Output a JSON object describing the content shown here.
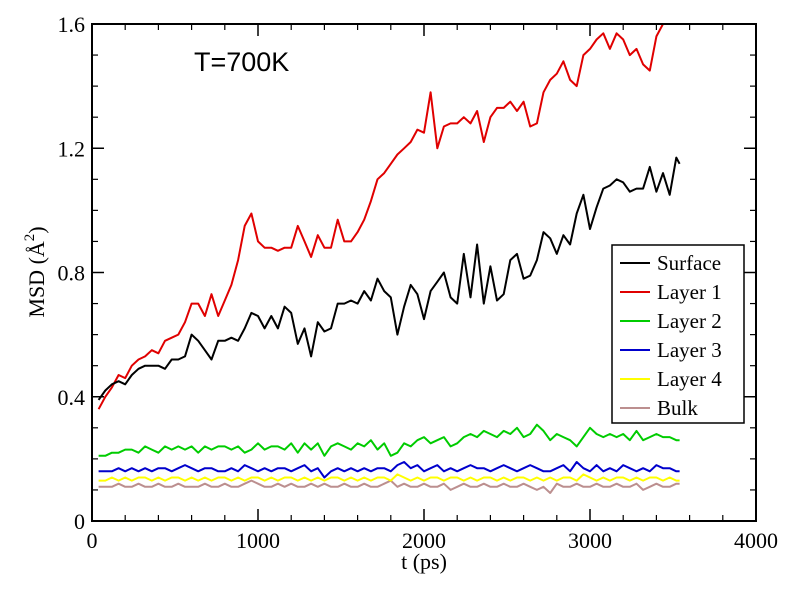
{
  "chart_data": {
    "type": "line",
    "title": "",
    "annotation": "T=700K",
    "xlabel": "t (ps)",
    "ylabel_prefix": "MSD (",
    "ylabel_unit": "Å",
    "ylabel_exponent": "2",
    "ylabel_suffix": ")",
    "xlim": [
      0,
      4000
    ],
    "ylim": [
      0,
      1.6
    ],
    "x_ticks": [
      0,
      1000,
      2000,
      3000,
      4000
    ],
    "x_tick_labels": [
      "0",
      "1000",
      "2000",
      "3000",
      "4000"
    ],
    "y_ticks": [
      0,
      0.4,
      0.8,
      1.2,
      1.6
    ],
    "y_tick_labels": [
      "0",
      "0.4",
      "0.8",
      "1.2",
      "1.6"
    ],
    "x_minor_step": 200,
    "y_minor_step": 0.1,
    "grid": false,
    "legend_position": "right",
    "series": [
      {
        "name": "Surface",
        "color": "#000000",
        "x": [
          40,
          80,
          120,
          160,
          200,
          240,
          280,
          320,
          360,
          400,
          440,
          480,
          520,
          560,
          600,
          640,
          680,
          720,
          760,
          800,
          840,
          880,
          920,
          960,
          1000,
          1040,
          1080,
          1120,
          1160,
          1200,
          1240,
          1280,
          1320,
          1360,
          1400,
          1440,
          1480,
          1520,
          1560,
          1600,
          1640,
          1680,
          1720,
          1760,
          1800,
          1840,
          1880,
          1920,
          1960,
          2000,
          2040,
          2080,
          2120,
          2160,
          2200,
          2240,
          2280,
          2320,
          2360,
          2400,
          2440,
          2480,
          2520,
          2560,
          2600,
          2640,
          2680,
          2720,
          2760,
          2800,
          2840,
          2880,
          2920,
          2960,
          3000,
          3040,
          3080,
          3120,
          3160,
          3200,
          3240,
          3280,
          3320,
          3360,
          3400,
          3440,
          3480,
          3520,
          3540
        ],
        "y": [
          0.39,
          0.42,
          0.44,
          0.45,
          0.44,
          0.47,
          0.49,
          0.5,
          0.5,
          0.5,
          0.49,
          0.52,
          0.52,
          0.53,
          0.6,
          0.58,
          0.55,
          0.52,
          0.58,
          0.58,
          0.59,
          0.58,
          0.62,
          0.67,
          0.66,
          0.62,
          0.66,
          0.62,
          0.69,
          0.67,
          0.57,
          0.62,
          0.53,
          0.64,
          0.61,
          0.62,
          0.7,
          0.7,
          0.71,
          0.7,
          0.74,
          0.71,
          0.78,
          0.74,
          0.72,
          0.6,
          0.69,
          0.76,
          0.73,
          0.65,
          0.74,
          0.77,
          0.8,
          0.72,
          0.7,
          0.86,
          0.72,
          0.89,
          0.7,
          0.82,
          0.71,
          0.73,
          0.84,
          0.86,
          0.78,
          0.79,
          0.84,
          0.93,
          0.91,
          0.86,
          0.92,
          0.89,
          0.99,
          1.05,
          0.94,
          1.01,
          1.07,
          1.08,
          1.1,
          1.09,
          1.06,
          1.07,
          1.07,
          1.14,
          1.06,
          1.12,
          1.05,
          1.17,
          1.15
        ]
      },
      {
        "name": "Layer 1",
        "color": "#e00000",
        "x": [
          40,
          80,
          120,
          160,
          200,
          240,
          280,
          320,
          360,
          400,
          440,
          480,
          520,
          560,
          600,
          640,
          680,
          720,
          760,
          800,
          840,
          880,
          920,
          960,
          1000,
          1040,
          1080,
          1120,
          1160,
          1200,
          1240,
          1280,
          1320,
          1360,
          1400,
          1440,
          1480,
          1520,
          1560,
          1600,
          1640,
          1680,
          1720,
          1760,
          1800,
          1840,
          1880,
          1920,
          1960,
          2000,
          2040,
          2080,
          2120,
          2160,
          2200,
          2240,
          2280,
          2320,
          2360,
          2400,
          2440,
          2480,
          2520,
          2560,
          2600,
          2640,
          2680,
          2720,
          2760,
          2800,
          2840,
          2880,
          2920,
          2960,
          3000,
          3040,
          3080,
          3120,
          3160,
          3200,
          3240,
          3280,
          3320,
          3360,
          3400,
          3440
        ],
        "y": [
          0.36,
          0.4,
          0.43,
          0.47,
          0.46,
          0.5,
          0.52,
          0.53,
          0.55,
          0.54,
          0.58,
          0.59,
          0.6,
          0.64,
          0.7,
          0.7,
          0.66,
          0.73,
          0.66,
          0.71,
          0.76,
          0.84,
          0.95,
          0.99,
          0.9,
          0.88,
          0.88,
          0.87,
          0.88,
          0.88,
          0.95,
          0.9,
          0.85,
          0.92,
          0.88,
          0.88,
          0.97,
          0.9,
          0.9,
          0.93,
          0.97,
          1.03,
          1.1,
          1.12,
          1.15,
          1.18,
          1.2,
          1.22,
          1.26,
          1.25,
          1.38,
          1.2,
          1.27,
          1.28,
          1.28,
          1.3,
          1.28,
          1.32,
          1.22,
          1.3,
          1.33,
          1.33,
          1.35,
          1.32,
          1.35,
          1.27,
          1.28,
          1.38,
          1.42,
          1.44,
          1.48,
          1.42,
          1.4,
          1.5,
          1.52,
          1.55,
          1.57,
          1.52,
          1.57,
          1.55,
          1.5,
          1.52,
          1.47,
          1.45,
          1.56,
          1.6
        ]
      },
      {
        "name": "Layer 2",
        "color": "#00cc00",
        "x": [
          40,
          80,
          120,
          160,
          200,
          240,
          280,
          320,
          360,
          400,
          440,
          480,
          520,
          560,
          600,
          640,
          680,
          720,
          760,
          800,
          840,
          880,
          920,
          960,
          1000,
          1040,
          1080,
          1120,
          1160,
          1200,
          1240,
          1280,
          1320,
          1360,
          1400,
          1440,
          1480,
          1520,
          1560,
          1600,
          1640,
          1680,
          1720,
          1760,
          1800,
          1840,
          1880,
          1920,
          1960,
          2000,
          2040,
          2080,
          2120,
          2160,
          2200,
          2240,
          2280,
          2320,
          2360,
          2400,
          2440,
          2480,
          2520,
          2560,
          2600,
          2640,
          2680,
          2720,
          2760,
          2800,
          2840,
          2880,
          2920,
          2960,
          3000,
          3040,
          3080,
          3120,
          3160,
          3200,
          3240,
          3280,
          3320,
          3360,
          3400,
          3440,
          3480,
          3520,
          3540
        ],
        "y": [
          0.21,
          0.21,
          0.22,
          0.22,
          0.23,
          0.23,
          0.22,
          0.24,
          0.23,
          0.22,
          0.24,
          0.23,
          0.24,
          0.23,
          0.24,
          0.22,
          0.24,
          0.23,
          0.24,
          0.24,
          0.23,
          0.24,
          0.22,
          0.23,
          0.25,
          0.23,
          0.24,
          0.24,
          0.23,
          0.25,
          0.22,
          0.25,
          0.23,
          0.25,
          0.21,
          0.24,
          0.25,
          0.24,
          0.23,
          0.25,
          0.24,
          0.26,
          0.23,
          0.25,
          0.21,
          0.22,
          0.25,
          0.24,
          0.26,
          0.27,
          0.25,
          0.26,
          0.27,
          0.24,
          0.25,
          0.27,
          0.28,
          0.27,
          0.29,
          0.28,
          0.27,
          0.29,
          0.28,
          0.3,
          0.27,
          0.28,
          0.31,
          0.29,
          0.26,
          0.28,
          0.27,
          0.26,
          0.24,
          0.27,
          0.3,
          0.28,
          0.27,
          0.28,
          0.27,
          0.28,
          0.26,
          0.29,
          0.26,
          0.27,
          0.28,
          0.27,
          0.27,
          0.26,
          0.26
        ]
      },
      {
        "name": "Layer 3",
        "color": "#0000cc",
        "x": [
          40,
          80,
          120,
          160,
          200,
          240,
          280,
          320,
          360,
          400,
          440,
          480,
          520,
          560,
          600,
          640,
          680,
          720,
          760,
          800,
          840,
          880,
          920,
          960,
          1000,
          1040,
          1080,
          1120,
          1160,
          1200,
          1240,
          1280,
          1320,
          1360,
          1400,
          1440,
          1480,
          1520,
          1560,
          1600,
          1640,
          1680,
          1720,
          1760,
          1800,
          1840,
          1880,
          1920,
          1960,
          2000,
          2040,
          2080,
          2120,
          2160,
          2200,
          2240,
          2280,
          2320,
          2360,
          2400,
          2440,
          2480,
          2520,
          2560,
          2600,
          2640,
          2680,
          2720,
          2760,
          2800,
          2840,
          2880,
          2920,
          2960,
          3000,
          3040,
          3080,
          3120,
          3160,
          3200,
          3240,
          3280,
          3320,
          3360,
          3400,
          3440,
          3480,
          3520,
          3540
        ],
        "y": [
          0.16,
          0.16,
          0.16,
          0.17,
          0.16,
          0.17,
          0.16,
          0.17,
          0.16,
          0.17,
          0.17,
          0.16,
          0.17,
          0.18,
          0.17,
          0.16,
          0.17,
          0.17,
          0.16,
          0.16,
          0.17,
          0.16,
          0.18,
          0.17,
          0.16,
          0.17,
          0.16,
          0.17,
          0.17,
          0.16,
          0.17,
          0.18,
          0.16,
          0.17,
          0.14,
          0.16,
          0.17,
          0.16,
          0.17,
          0.16,
          0.17,
          0.16,
          0.17,
          0.17,
          0.16,
          0.18,
          0.19,
          0.17,
          0.18,
          0.16,
          0.17,
          0.18,
          0.16,
          0.17,
          0.16,
          0.17,
          0.18,
          0.17,
          0.17,
          0.16,
          0.17,
          0.18,
          0.17,
          0.16,
          0.17,
          0.18,
          0.17,
          0.16,
          0.16,
          0.17,
          0.18,
          0.16,
          0.19,
          0.17,
          0.16,
          0.18,
          0.16,
          0.17,
          0.16,
          0.18,
          0.17,
          0.16,
          0.17,
          0.16,
          0.18,
          0.17,
          0.17,
          0.16,
          0.16
        ]
      },
      {
        "name": "Layer 4",
        "color": "#ffff00",
        "x": [
          40,
          80,
          120,
          160,
          200,
          240,
          280,
          320,
          360,
          400,
          440,
          480,
          520,
          560,
          600,
          640,
          680,
          720,
          760,
          800,
          840,
          880,
          920,
          960,
          1000,
          1040,
          1080,
          1120,
          1160,
          1200,
          1240,
          1280,
          1320,
          1360,
          1400,
          1440,
          1480,
          1520,
          1560,
          1600,
          1640,
          1680,
          1720,
          1760,
          1800,
          1840,
          1880,
          1920,
          1960,
          2000,
          2040,
          2080,
          2120,
          2160,
          2200,
          2240,
          2280,
          2320,
          2360,
          2400,
          2440,
          2480,
          2520,
          2560,
          2600,
          2640,
          2680,
          2720,
          2760,
          2800,
          2840,
          2880,
          2920,
          2960,
          3000,
          3040,
          3080,
          3120,
          3160,
          3200,
          3240,
          3280,
          3320,
          3360,
          3400,
          3440,
          3480,
          3520,
          3540
        ],
        "y": [
          0.13,
          0.13,
          0.14,
          0.13,
          0.14,
          0.13,
          0.14,
          0.14,
          0.13,
          0.14,
          0.13,
          0.14,
          0.14,
          0.13,
          0.14,
          0.13,
          0.14,
          0.13,
          0.14,
          0.14,
          0.13,
          0.14,
          0.13,
          0.14,
          0.14,
          0.13,
          0.14,
          0.13,
          0.14,
          0.14,
          0.13,
          0.14,
          0.13,
          0.14,
          0.13,
          0.14,
          0.14,
          0.13,
          0.14,
          0.13,
          0.14,
          0.13,
          0.14,
          0.14,
          0.13,
          0.15,
          0.14,
          0.13,
          0.14,
          0.13,
          0.14,
          0.14,
          0.13,
          0.14,
          0.14,
          0.13,
          0.14,
          0.13,
          0.14,
          0.14,
          0.13,
          0.14,
          0.13,
          0.14,
          0.14,
          0.13,
          0.14,
          0.13,
          0.14,
          0.13,
          0.14,
          0.14,
          0.13,
          0.15,
          0.14,
          0.13,
          0.14,
          0.13,
          0.14,
          0.14,
          0.13,
          0.14,
          0.13,
          0.14,
          0.14,
          0.13,
          0.14,
          0.13,
          0.13
        ]
      },
      {
        "name": "Bulk",
        "color": "#bc8f8f",
        "x": [
          40,
          80,
          120,
          160,
          200,
          240,
          280,
          320,
          360,
          400,
          440,
          480,
          520,
          560,
          600,
          640,
          680,
          720,
          760,
          800,
          840,
          880,
          920,
          960,
          1000,
          1040,
          1080,
          1120,
          1160,
          1200,
          1240,
          1280,
          1320,
          1360,
          1400,
          1440,
          1480,
          1520,
          1560,
          1600,
          1640,
          1680,
          1720,
          1760,
          1800,
          1840,
          1880,
          1920,
          1960,
          2000,
          2040,
          2080,
          2120,
          2160,
          2200,
          2240,
          2280,
          2320,
          2360,
          2400,
          2440,
          2480,
          2520,
          2560,
          2600,
          2640,
          2680,
          2720,
          2760,
          2800,
          2840,
          2880,
          2920,
          2960,
          3000,
          3040,
          3080,
          3120,
          3160,
          3200,
          3240,
          3280,
          3320,
          3360,
          3400,
          3440,
          3480,
          3520,
          3540
        ],
        "y": [
          0.11,
          0.11,
          0.11,
          0.12,
          0.11,
          0.11,
          0.12,
          0.11,
          0.11,
          0.12,
          0.11,
          0.11,
          0.12,
          0.11,
          0.11,
          0.11,
          0.12,
          0.11,
          0.11,
          0.12,
          0.11,
          0.11,
          0.12,
          0.13,
          0.12,
          0.11,
          0.11,
          0.12,
          0.11,
          0.12,
          0.11,
          0.11,
          0.12,
          0.11,
          0.12,
          0.11,
          0.11,
          0.12,
          0.11,
          0.11,
          0.12,
          0.11,
          0.11,
          0.12,
          0.13,
          0.11,
          0.12,
          0.11,
          0.11,
          0.12,
          0.11,
          0.11,
          0.12,
          0.1,
          0.11,
          0.12,
          0.11,
          0.11,
          0.12,
          0.11,
          0.11,
          0.12,
          0.11,
          0.11,
          0.12,
          0.11,
          0.1,
          0.11,
          0.09,
          0.12,
          0.11,
          0.11,
          0.12,
          0.11,
          0.11,
          0.12,
          0.11,
          0.11,
          0.12,
          0.11,
          0.11,
          0.12,
          0.1,
          0.11,
          0.12,
          0.11,
          0.11,
          0.12,
          0.12
        ]
      }
    ]
  }
}
